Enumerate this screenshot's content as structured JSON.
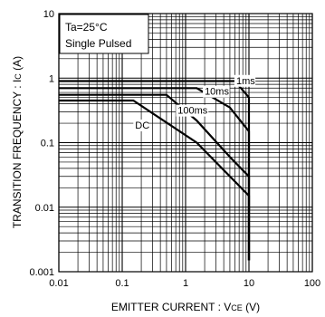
{
  "chart_data": {
    "type": "line",
    "scale": "log-log",
    "xlabel": "EMITTER  CURRENT : V",
    "xlabel_sub": "CE",
    "xlabel_unit": " (V)",
    "ylabel": "TRANSITION FREQUENCY : I",
    "ylabel_sub": "C",
    "ylabel_unit": " (A)",
    "xlim": [
      0.01,
      100
    ],
    "ylim": [
      0.001,
      10
    ],
    "x_ticks": [
      {
        "value": 0.01,
        "label": "0.01"
      },
      {
        "value": 0.1,
        "label": "0.1"
      },
      {
        "value": 1,
        "label": "1"
      },
      {
        "value": 10,
        "label": "10"
      },
      {
        "value": 100,
        "label": "100"
      }
    ],
    "y_ticks": [
      {
        "value": 0.001,
        "label": "0.001"
      },
      {
        "value": 0.01,
        "label": "0.01"
      },
      {
        "value": 0.1,
        "label": "0.1"
      },
      {
        "value": 1,
        "label": "1"
      },
      {
        "value": 10,
        "label": "10"
      }
    ],
    "grid": true,
    "annotations": [
      "Ta=25°C",
      "Single Pulsed"
    ],
    "series": [
      {
        "name": "1ms",
        "x": [
          0.01,
          6.0,
          10.0,
          10.0
        ],
        "y": [
          0.9,
          0.9,
          0.5,
          0.0015
        ]
      },
      {
        "name": "10ms",
        "x": [
          0.01,
          1.5,
          5.0,
          10.0,
          10.0
        ],
        "y": [
          0.7,
          0.7,
          0.35,
          0.15,
          0.0015
        ]
      },
      {
        "name": "100ms",
        "x": [
          0.01,
          0.5,
          1.5,
          5.0,
          10.0,
          10.0
        ],
        "y": [
          0.55,
          0.55,
          0.22,
          0.06,
          0.03,
          0.0015
        ]
      },
      {
        "name": "DC",
        "x": [
          0.01,
          0.15,
          1.5,
          10.0,
          10.0
        ],
        "y": [
          0.45,
          0.45,
          0.1,
          0.015,
          0.0015
        ]
      }
    ],
    "curve_labels": [
      {
        "series": "1ms",
        "text": "1ms",
        "x": 6.3,
        "y": 0.81
      },
      {
        "series": "10ms",
        "text": "10ms",
        "x": 2.0,
        "y": 0.55
      },
      {
        "series": "100ms",
        "text": "100ms",
        "x": 0.75,
        "y": 0.28
      },
      {
        "series": "DC",
        "text": "DC",
        "x": 0.16,
        "y": 0.165
      }
    ]
  }
}
